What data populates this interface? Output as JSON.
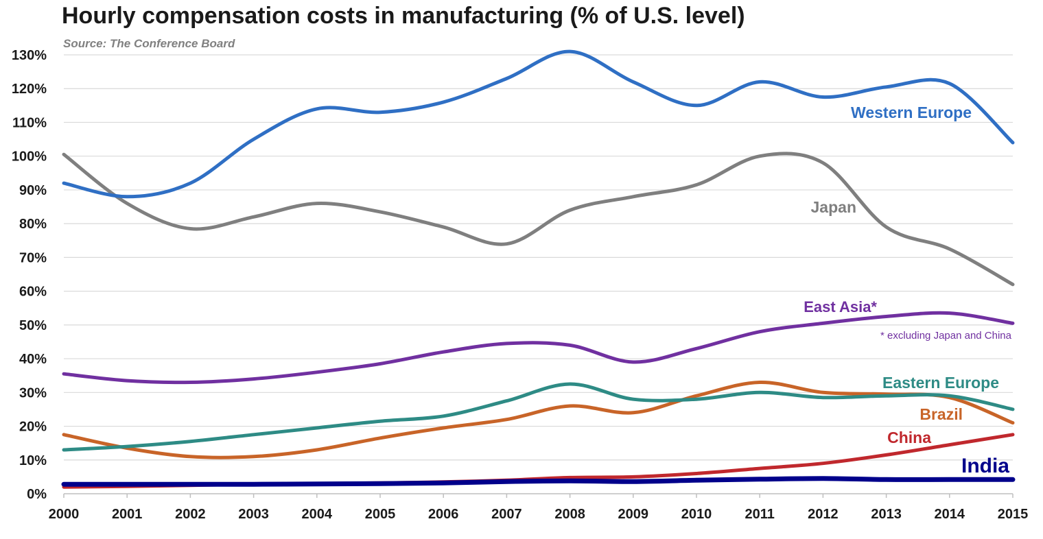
{
  "chart_data": {
    "type": "line",
    "title": "Hourly compensation costs in manufacturing (% of U.S. level)",
    "source": "Source:  The Conference Board",
    "xlabel": "",
    "ylabel": "",
    "x": [
      2000,
      2001,
      2002,
      2003,
      2004,
      2005,
      2006,
      2007,
      2008,
      2009,
      2010,
      2011,
      2012,
      2013,
      2014,
      2015
    ],
    "x_tick_labels": [
      "2000",
      "2001",
      "2002",
      "2003",
      "2004",
      "2005",
      "2006",
      "2007",
      "2008",
      "2009",
      "2010",
      "2011",
      "2012",
      "2013",
      "2014",
      "2015"
    ],
    "ylim": [
      0,
      130
    ],
    "y_ticks": [
      0,
      10,
      20,
      30,
      40,
      50,
      60,
      70,
      80,
      90,
      100,
      110,
      120,
      130
    ],
    "y_tick_labels": [
      "0%",
      "10%",
      "20%",
      "30%",
      "40%",
      "50%",
      "60%",
      "70%",
      "80%",
      "90%",
      "100%",
      "110%",
      "120%",
      "130%"
    ],
    "grid": true,
    "legend": "inline labels",
    "series": [
      {
        "name": "Western Europe",
        "color": "#2f6fc4",
        "values": [
          92,
          88,
          92,
          105,
          114,
          113,
          116,
          123,
          131,
          122,
          115,
          122,
          117.5,
          120.5,
          121.5,
          104
        ]
      },
      {
        "name": "Japan",
        "color": "#7f7f7f",
        "values": [
          100.5,
          86,
          78.5,
          82,
          86,
          83.5,
          79,
          74,
          84,
          88,
          91.5,
          100,
          98,
          79,
          72.5,
          62
        ]
      },
      {
        "name": "East Asia*",
        "note": "* excluding Japan and China",
        "color": "#7030a0",
        "values": [
          35.5,
          33.5,
          33,
          34,
          36,
          38.5,
          42,
          44.5,
          44,
          39,
          43,
          48,
          50.5,
          52.5,
          53.5,
          50.5
        ]
      },
      {
        "name": "Eastern Europe",
        "color": "#2e8b85",
        "values": [
          13,
          14,
          15.5,
          17.5,
          19.5,
          21.5,
          23,
          27.5,
          32.5,
          28,
          28,
          30,
          28.5,
          29,
          29,
          25
        ]
      },
      {
        "name": "Brazil",
        "color": "#c86428",
        "values": [
          17.5,
          13.5,
          11,
          11,
          13,
          16.5,
          19.5,
          22,
          26,
          24,
          29,
          33,
          30,
          29.5,
          28.5,
          21
        ]
      },
      {
        "name": "China",
        "color": "#c0282d",
        "values": [
          2,
          2.2,
          2.5,
          2.8,
          3,
          3.2,
          3.5,
          4,
          4.8,
          5,
          6,
          7.5,
          9,
          11.5,
          14.5,
          17.5
        ]
      },
      {
        "name": "India",
        "color": "#00008b",
        "values": [
          2.8,
          2.8,
          2.8,
          2.8,
          2.9,
          3,
          3.2,
          3.6,
          3.8,
          3.6,
          4,
          4.3,
          4.5,
          4.2,
          4.2,
          4.2
        ]
      }
    ]
  }
}
